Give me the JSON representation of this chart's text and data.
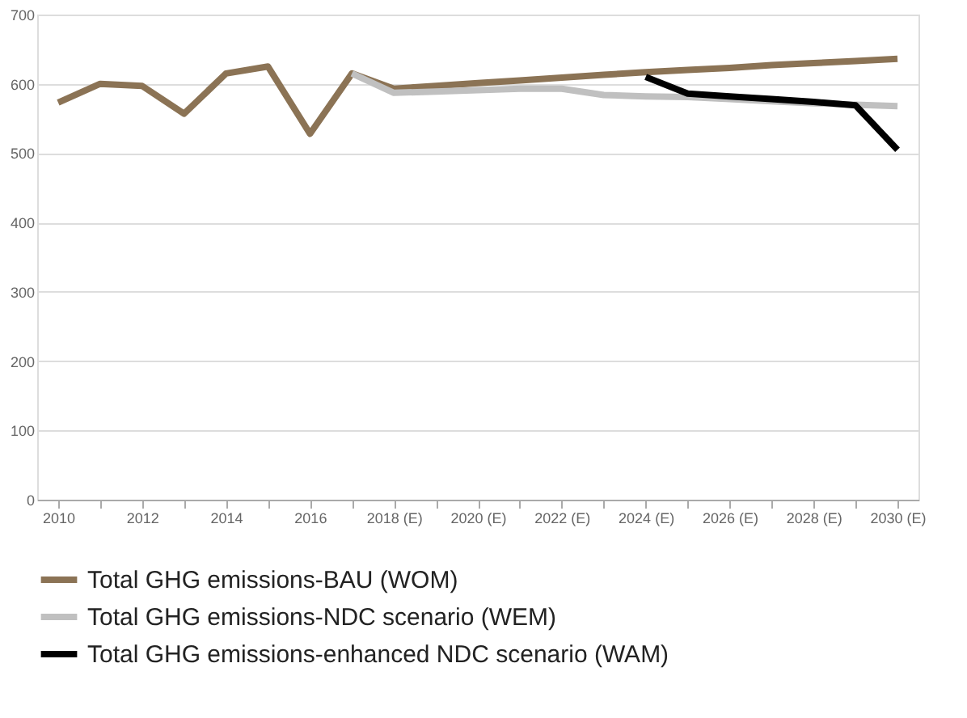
{
  "chart_data": {
    "type": "line",
    "categories": [
      "2010",
      null,
      "2012",
      null,
      "2014",
      null,
      "2016",
      null,
      "2018 (E)",
      null,
      "2020 (E)",
      null,
      "2022 (E)",
      null,
      "2024 (E)",
      null,
      "2026 (E)",
      null,
      "2028 (E)",
      null,
      "2030 (E)"
    ],
    "series": [
      {
        "name": "Total GHG emissions-BAU (WOM)",
        "color": "#8b7355",
        "values": [
          573,
          600,
          597,
          557,
          615,
          625,
          528,
          615,
          593,
          597,
          601,
          605,
          609,
          613,
          617,
          620,
          623,
          627,
          630,
          633,
          636
        ]
      },
      {
        "name": "Total GHG emissions-NDC scenario (WEM)",
        "color": "#c0c0c0",
        "values": [
          null,
          null,
          null,
          null,
          null,
          null,
          null,
          615,
          587,
          589,
          591,
          593,
          593,
          584,
          582,
          581,
          578,
          575,
          572,
          570,
          568
        ]
      },
      {
        "name": "Total GHG emissions-enhanced NDC scenario (WAM)",
        "color": "#000000",
        "values": [
          null,
          null,
          null,
          null,
          null,
          null,
          null,
          null,
          null,
          null,
          null,
          null,
          null,
          null,
          610,
          586,
          582,
          578,
          574,
          569,
          505
        ]
      }
    ],
    "ylim": [
      0,
      700
    ],
    "yticks": [
      0,
      100,
      200,
      300,
      400,
      500,
      600,
      700
    ],
    "grid": "y",
    "legend": "bottom left",
    "line_style": "solid",
    "marker": "none"
  }
}
